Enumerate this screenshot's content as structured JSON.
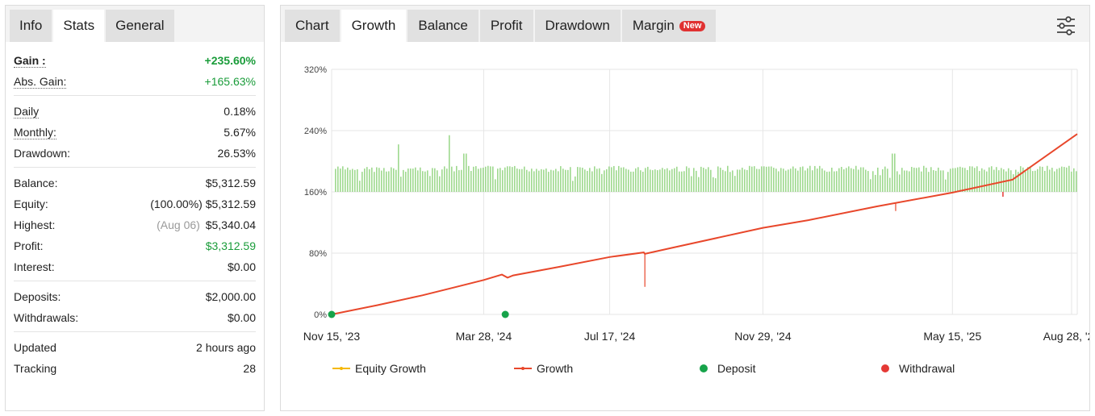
{
  "left_tabs": [
    {
      "label": "Info",
      "active": false
    },
    {
      "label": "Stats",
      "active": true
    },
    {
      "label": "General",
      "active": false
    }
  ],
  "stats": {
    "gain": {
      "label": "Gain :",
      "value": "+235.60%"
    },
    "abs_gain": {
      "label": "Abs. Gain:",
      "value": "+165.63%"
    },
    "daily": {
      "label": "Daily",
      "value": "0.18%"
    },
    "monthly": {
      "label": "Monthly:",
      "value": "5.67%"
    },
    "drawdown": {
      "label": "Drawdown:",
      "value": "26.53%"
    },
    "balance": {
      "label": "Balance:",
      "value": "$5,312.59"
    },
    "equity": {
      "label": "Equity:",
      "note": "(100.00%)",
      "value": "$5,312.59"
    },
    "highest": {
      "label": "Highest:",
      "note": "(Aug 06)",
      "value": "$5,340.04"
    },
    "profit": {
      "label": "Profit:",
      "value": "$3,312.59"
    },
    "interest": {
      "label": "Interest:",
      "value": "$0.00"
    },
    "deposits": {
      "label": "Deposits:",
      "value": "$2,000.00"
    },
    "withdrawals": {
      "label": "Withdrawals:",
      "value": "$0.00"
    },
    "updated": {
      "label": "Updated",
      "value": "2 hours ago"
    },
    "tracking": {
      "label": "Tracking",
      "value": "28"
    }
  },
  "right_tabs": [
    {
      "label": "Chart",
      "active": false
    },
    {
      "label": "Growth",
      "active": true
    },
    {
      "label": "Balance",
      "active": false
    },
    {
      "label": "Profit",
      "active": false
    },
    {
      "label": "Drawdown",
      "active": false
    },
    {
      "label": "Margin",
      "active": false,
      "badge": "New"
    }
  ],
  "icons": {
    "settings": "sliders-icon"
  },
  "colors": {
    "growth": "#e8472b",
    "equity_growth": "#f5b800",
    "deposit": "#16a34a",
    "withdrawal": "#e53935",
    "daily_bars": "#9ed98e",
    "positive": "#1a9c3a"
  },
  "chart_data": {
    "type": "line",
    "y_ticks": [
      "320%",
      "240%",
      "160%",
      "80%",
      "0%"
    ],
    "ylim": [
      0,
      320
    ],
    "x_ticks": [
      "Nov 15, '23",
      "Mar 28, '24",
      "Jul 17, '24",
      "Nov 29, '24",
      "May 15, '25",
      "Aug 28, '25"
    ],
    "x_tick_days": [
      0,
      134,
      245,
      380,
      547,
      652
    ],
    "xlim_days": [
      0,
      657
    ],
    "grid": true,
    "legend_position": "bottom",
    "series": [
      {
        "name": "Growth",
        "points": [
          [
            0,
            0
          ],
          [
            40,
            12
          ],
          [
            80,
            25
          ],
          [
            110,
            36
          ],
          [
            134,
            45
          ],
          [
            150,
            52
          ],
          [
            155,
            48
          ],
          [
            160,
            51
          ],
          [
            200,
            62
          ],
          [
            245,
            75
          ],
          [
            275,
            81
          ],
          [
            276,
            79
          ],
          [
            300,
            87
          ],
          [
            380,
            113
          ],
          [
            420,
            123
          ],
          [
            480,
            141
          ],
          [
            547,
            159
          ],
          [
            600,
            176
          ],
          [
            657,
            235.6
          ]
        ],
        "drops": [
          {
            "day": 276,
            "low": 36
          },
          {
            "day": 497,
            "low": 135
          }
        ]
      },
      {
        "name": "Equity Growth",
        "points": []
      }
    ],
    "bars": {
      "name": "Daily",
      "baseline": 160,
      "typical_top": 194,
      "spikes": [
        {
          "day": 58,
          "top": 222
        },
        {
          "day": 103,
          "top": 234
        },
        {
          "day": 117,
          "top": 210
        },
        {
          "day": 495,
          "top": 210
        }
      ]
    },
    "deposits": [
      {
        "day": 0,
        "value": 0
      },
      {
        "day": 153,
        "value": 0
      }
    ],
    "legend": [
      "Equity Growth",
      "Growth",
      "Deposit",
      "Withdrawal"
    ]
  }
}
